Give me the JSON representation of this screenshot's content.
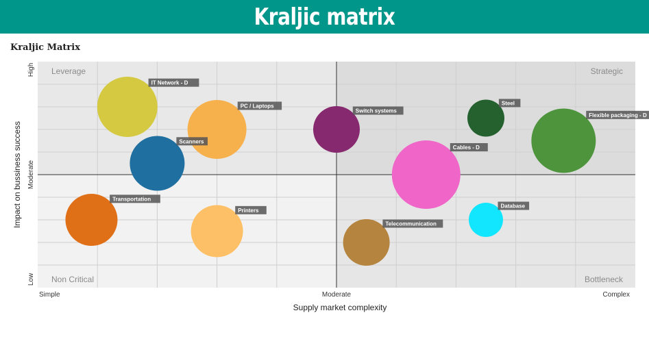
{
  "banner": {
    "title": "Kraljic matrix"
  },
  "chart_data": {
    "type": "bubble",
    "title": "Kraljic Matrix",
    "xlabel": "Supply market complexity",
    "ylabel": "Impact on bussiness success",
    "xlim": [
      0,
      10
    ],
    "ylim": [
      0,
      10
    ],
    "x_ticks": [
      {
        "value": 0,
        "label": "Simple"
      },
      {
        "value": 5,
        "label": "Moderate"
      },
      {
        "value": 10,
        "label": "Complex"
      }
    ],
    "y_ticks": [
      {
        "value": 0,
        "label": "Low"
      },
      {
        "value": 5,
        "label": "Moderate"
      },
      {
        "value": 10,
        "label": "High"
      }
    ],
    "quadrants": [
      {
        "label": "Leverage",
        "position": "top-left"
      },
      {
        "label": "Strategic",
        "position": "top-right"
      },
      {
        "label": "Non Critical",
        "position": "bottom-left"
      },
      {
        "label": "Bottleneck",
        "position": "bottom-right"
      }
    ],
    "quadrant_colors": {
      "top_left": "#e8e8e8",
      "top_right": "#dcdcdc",
      "bottom_left": "#f2f2f2",
      "bottom_right": "#e6e6e6"
    },
    "grid": true,
    "points": [
      {
        "name": "IT Network - D",
        "x": 1.5,
        "y": 8.0,
        "size": 44,
        "color": "#d4c940"
      },
      {
        "name": "PC / Laptops",
        "x": 3.0,
        "y": 7.0,
        "size": 43,
        "color": "#f6b14d"
      },
      {
        "name": "Scanners",
        "x": 2.0,
        "y": 5.5,
        "size": 40,
        "color": "#1f6fa0"
      },
      {
        "name": "Transportation",
        "x": 0.9,
        "y": 3.0,
        "size": 38,
        "color": "#e07018"
      },
      {
        "name": "Printers",
        "x": 3.0,
        "y": 2.5,
        "size": 38,
        "color": "#fdc066"
      },
      {
        "name": "Switch systems",
        "x": 5.0,
        "y": 7.0,
        "size": 34,
        "color": "#86296e"
      },
      {
        "name": "Steel",
        "x": 7.5,
        "y": 7.5,
        "size": 27,
        "color": "#24612f"
      },
      {
        "name": "Flexible packaging - D",
        "x": 8.8,
        "y": 6.5,
        "size": 47,
        "color": "#4d943c"
      },
      {
        "name": "Cables - D",
        "x": 6.5,
        "y": 5.0,
        "size": 50,
        "color": "#f065c8"
      },
      {
        "name": "Database",
        "x": 7.5,
        "y": 3.0,
        "size": 25,
        "color": "#12e6ff"
      },
      {
        "name": "Telecommunication",
        "x": 5.5,
        "y": 2.0,
        "size": 34,
        "color": "#b5843e"
      }
    ]
  }
}
